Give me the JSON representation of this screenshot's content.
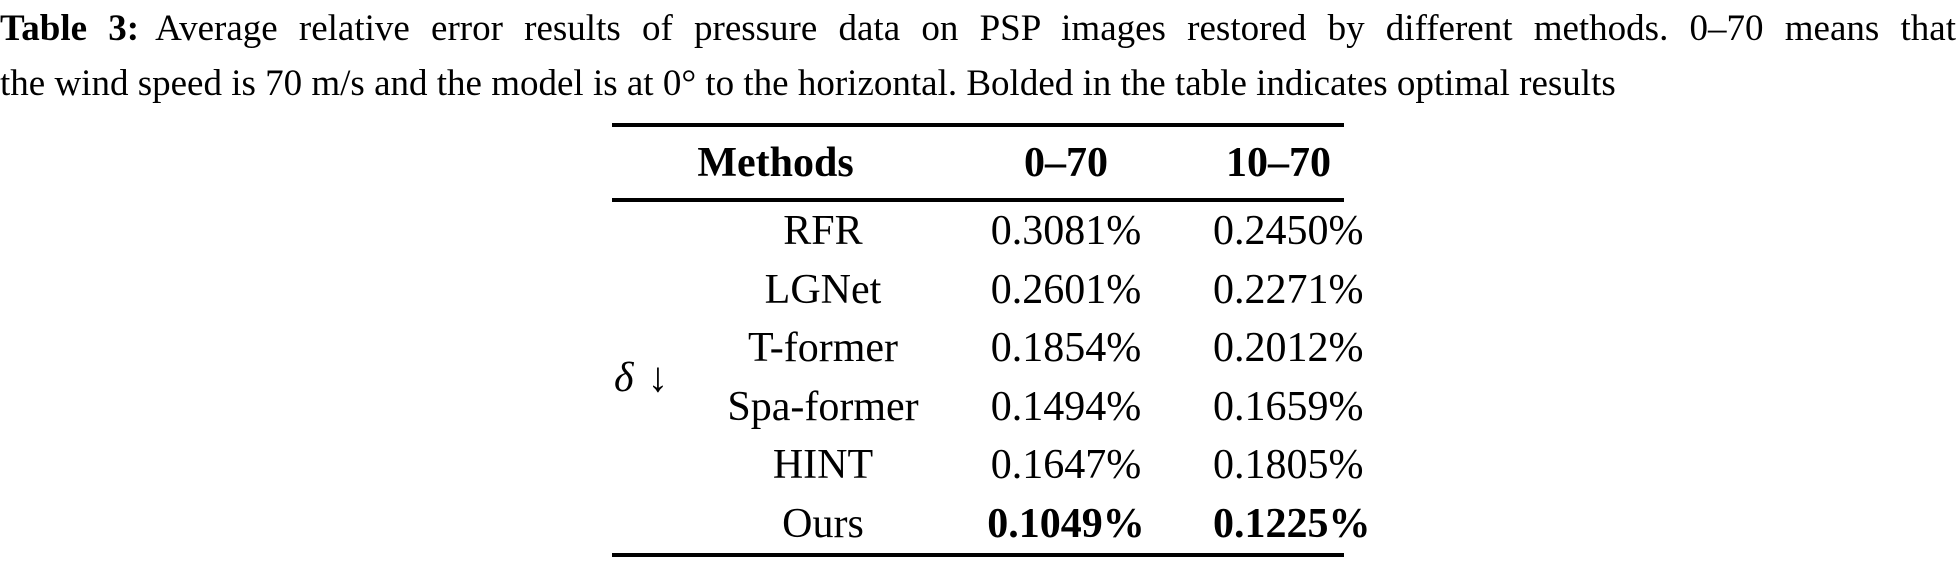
{
  "caption": {
    "label": "Table 3:",
    "line1_rest": "Average relative error results of pressure data on PSP images restored by different methods. 0–70 means that",
    "line2": "the wind speed is 70 m/s and the model is at 0° to the horizontal. Bolded in the table indicates optimal results"
  },
  "table": {
    "header": {
      "methods": "Methods",
      "col1": "0–70",
      "col2": "10–70"
    },
    "delta": {
      "symbol": "δ",
      "arrow": "↓"
    },
    "rows": [
      {
        "method": "RFR",
        "v1": "0.3081%",
        "v2": "0.2450%"
      },
      {
        "method": "LGNet",
        "v1": "0.2601%",
        "v2": "0.2271%"
      },
      {
        "method": "T-former",
        "v1": "0.1854%",
        "v2": "0.2012%"
      },
      {
        "method": "Spa-former",
        "v1": "0.1494%",
        "v2": "0.1659%"
      },
      {
        "method": "HINT",
        "v1": "0.1647%",
        "v2": "0.1805%"
      },
      {
        "method": "Ours",
        "v1": "0.1049%",
        "v2": "0.1225%"
      }
    ],
    "optimal_row": "Ours",
    "colors": {
      "text": "#000000",
      "background": "#ffffff",
      "rule": "#000000"
    }
  }
}
